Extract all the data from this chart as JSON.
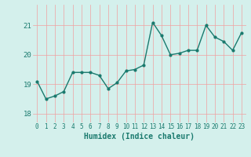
{
  "x": [
    0,
    1,
    2,
    3,
    4,
    5,
    6,
    7,
    8,
    9,
    10,
    11,
    12,
    13,
    14,
    15,
    16,
    17,
    18,
    19,
    20,
    21,
    22,
    23
  ],
  "y": [
    19.1,
    18.5,
    18.6,
    18.75,
    19.4,
    19.4,
    19.4,
    19.3,
    18.85,
    19.05,
    19.45,
    19.5,
    19.65,
    21.1,
    20.65,
    20.0,
    20.05,
    20.15,
    20.15,
    21.0,
    20.6,
    20.45,
    20.15,
    20.75
  ],
  "line_color": "#1a7a6e",
  "marker": "o",
  "marker_size": 2.0,
  "line_width": 1.0,
  "bg_color": "#d4f0ec",
  "grid_color": "#c0dcd8",
  "grid_color_major": "#f0a0a0",
  "xlabel": "Humidex (Indice chaleur)",
  "ylim": [
    17.7,
    21.7
  ],
  "xlim": [
    -0.5,
    23.5
  ],
  "yticks": [
    18,
    19,
    20,
    21
  ],
  "xticks": [
    0,
    1,
    2,
    3,
    4,
    5,
    6,
    7,
    8,
    9,
    10,
    11,
    12,
    13,
    14,
    15,
    16,
    17,
    18,
    19,
    20,
    21,
    22,
    23
  ],
  "tick_color": "#1a7a6e",
  "xlabel_fontsize": 7,
  "ytick_fontsize": 6.5,
  "xtick_fontsize": 5.5
}
